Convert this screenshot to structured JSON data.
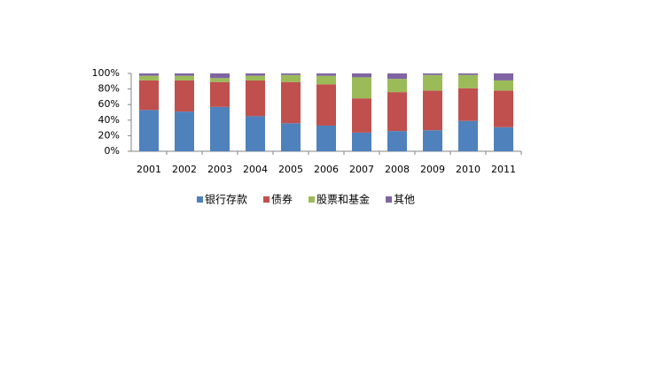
{
  "chart_data": {
    "type": "stacked_bar",
    "categories": [
      "2001",
      "2002",
      "2003",
      "2004",
      "2005",
      "2006",
      "2007",
      "2008",
      "2009",
      "2010",
      "2011"
    ],
    "series": [
      {
        "name": "银行存款",
        "color": "#4f81bd",
        "values": [
          53,
          51,
          57,
          45,
          36,
          33,
          24,
          26,
          27,
          39,
          31
        ]
      },
      {
        "name": "债券",
        "color": "#c0504d",
        "values": [
          38,
          40,
          32,
          46,
          53,
          53,
          44,
          50,
          51,
          42,
          47
        ]
      },
      {
        "name": "股票和基金",
        "color": "#9bbb59",
        "values": [
          6,
          6,
          5,
          6,
          9,
          11,
          27,
          17,
          20,
          17,
          13
        ]
      },
      {
        "name": "其他",
        "color": "#8064a2",
        "values": [
          3,
          3,
          6,
          3,
          2,
          3,
          5,
          7,
          2,
          2,
          9
        ]
      }
    ],
    "ylim": [
      0,
      100
    ],
    "yticks": [
      {
        "value": 0,
        "label": "0%"
      },
      {
        "value": 20,
        "label": "20%"
      },
      {
        "value": 40,
        "label": "40%"
      },
      {
        "value": 60,
        "label": "60%"
      },
      {
        "value": 80,
        "label": "80%"
      },
      {
        "value": 100,
        "label": "100%"
      }
    ],
    "legend": "bottom"
  }
}
